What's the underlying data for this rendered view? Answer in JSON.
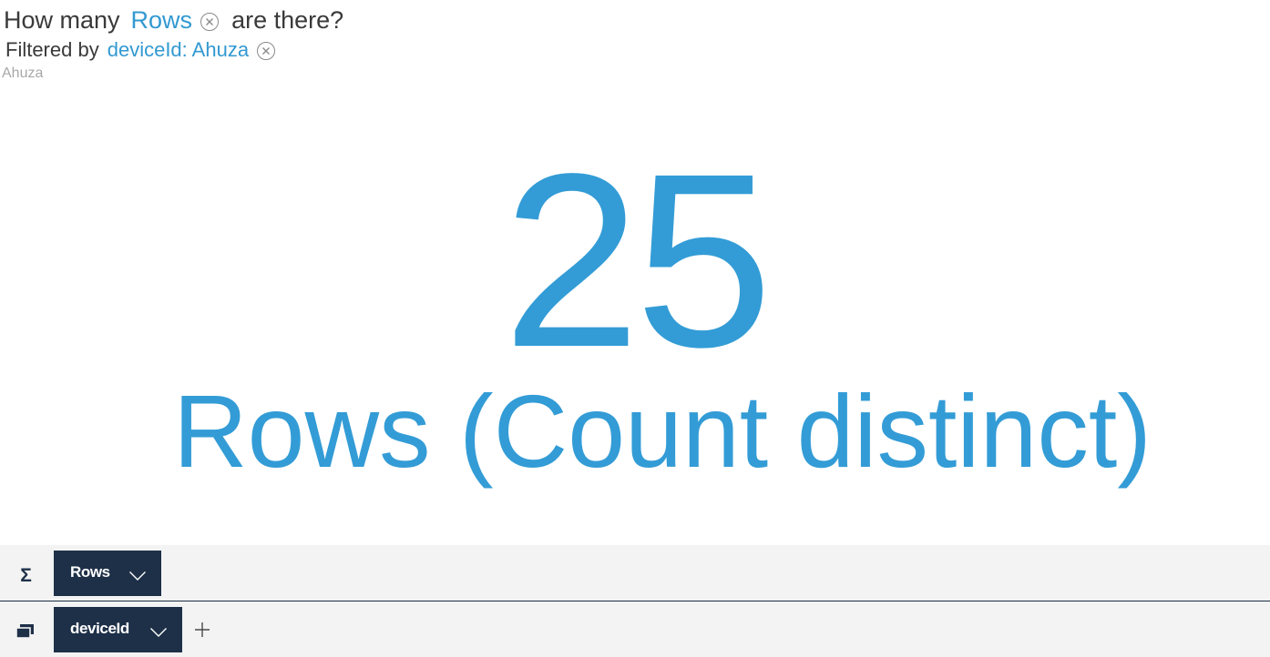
{
  "question": {
    "prefix": "How many",
    "measure": "Rows",
    "suffix": "are there?"
  },
  "filter": {
    "prefix": "Filtered by",
    "value": "deviceId: Ahuza"
  },
  "subtitle": "Ahuza",
  "kpi": {
    "value": "25",
    "label": "Rows (Count distinct)"
  },
  "shelves": {
    "measure": {
      "icon": "sigma-icon",
      "icon_glyph": "Σ",
      "chip_label": "Rows"
    },
    "group": {
      "icon": "group-by-icon",
      "chip_label": "deviceId"
    }
  },
  "colors": {
    "accent": "#339cd6",
    "chip_bg": "#1e3048",
    "shelf_bg": "#f3f3f3",
    "text": "#3a3a3a",
    "muted": "#a8a8a8"
  }
}
